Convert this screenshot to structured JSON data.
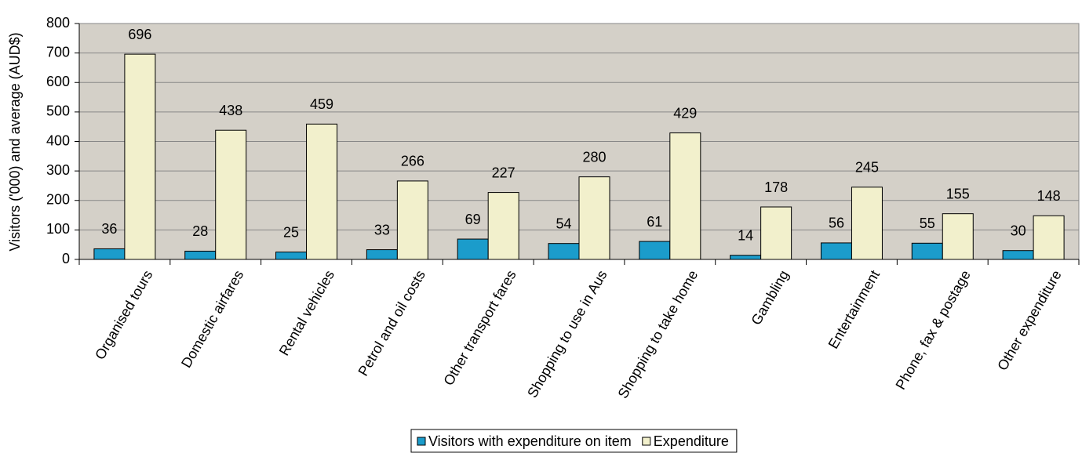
{
  "chart_data": {
    "type": "bar",
    "y_label": "Visitors ('000) and average (AUD$)",
    "categories": [
      "Organised tours",
      "Domestic airfares",
      "Rental vehicles",
      "Petrol and oil costs",
      "Other transport fares",
      "Shopping to use in Aus",
      "Shopping to take home",
      "Gambling",
      "Entertainment",
      "Phone, fax & postage",
      "Other expenditure"
    ],
    "series": [
      {
        "name": "Visitors with expenditure on item",
        "color": "#1b9ccb",
        "values": [
          36,
          28,
          25,
          33,
          69,
          54,
          61,
          14,
          56,
          55,
          30
        ]
      },
      {
        "name": "Expenditure",
        "color": "#f2f0cc",
        "values": [
          696,
          438,
          459,
          266,
          227,
          280,
          429,
          178,
          245,
          155,
          148
        ]
      }
    ],
    "ylim": [
      0,
      800
    ],
    "yticks": [
      0,
      100,
      200,
      300,
      400,
      500,
      600,
      700,
      800
    ],
    "grid": true,
    "legend": "bottom"
  }
}
